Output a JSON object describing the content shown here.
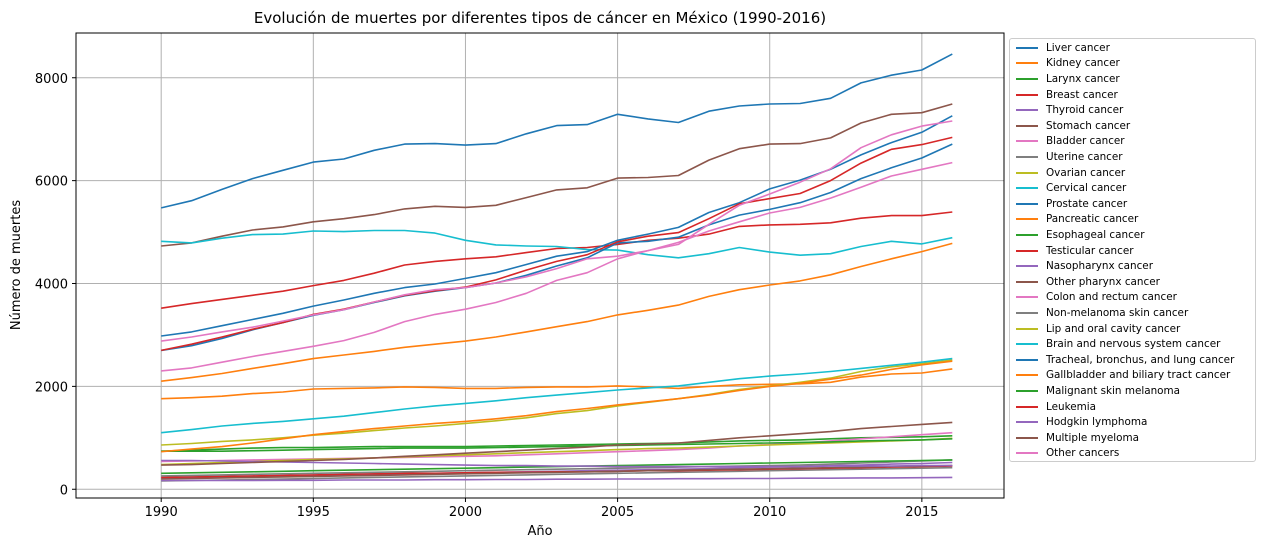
{
  "chart_data": {
    "type": "line",
    "title": "Evolución de muertes por diferentes tipos de cáncer en México (1990-2016)",
    "xlabel": "Año",
    "ylabel": "Número de muertes",
    "xlim": [
      1987.2,
      2017.7
    ],
    "ylim": [
      -170,
      8870
    ],
    "x_ticks": [
      1990,
      1995,
      2000,
      2005,
      2010,
      2015
    ],
    "y_ticks": [
      0,
      2000,
      4000,
      6000,
      8000
    ],
    "grid": true,
    "legend_position": "outside-right",
    "x": [
      1990,
      1991,
      1992,
      1993,
      1994,
      1995,
      1996,
      1997,
      1998,
      1999,
      2000,
      2001,
      2002,
      2003,
      2004,
      2005,
      2006,
      2007,
      2008,
      2009,
      2010,
      2011,
      2012,
      2013,
      2014,
      2015,
      2016
    ],
    "series": [
      {
        "name": "Liver cancer",
        "color": "#1f77b4",
        "values": [
          5470,
          5610,
          5830,
          6040,
          6200,
          6360,
          6420,
          6590,
          6710,
          6720,
          6690,
          6720,
          6910,
          7070,
          7090,
          7290,
          7200,
          7130,
          7350,
          7450,
          7490,
          7500,
          7600,
          7900,
          8050,
          8150,
          8460
        ]
      },
      {
        "name": "Kidney cancer",
        "color": "#ff7f0e",
        "values": [
          1760,
          1780,
          1810,
          1860,
          1890,
          1950,
          1960,
          1970,
          1990,
          1980,
          1960,
          1960,
          1980,
          1990,
          1990,
          2010,
          1990,
          1960,
          2000,
          2030,
          2040,
          2050,
          2080,
          2180,
          2240,
          2260,
          2340
        ]
      },
      {
        "name": "Larynx cancer",
        "color": "#2ca02c",
        "values": [
          740,
          760,
          780,
          800,
          810,
          810,
          820,
          830,
          830,
          830,
          830,
          840,
          850,
          860,
          870,
          880,
          890,
          900,
          920,
          940,
          950,
          960,
          980,
          1000,
          1010,
          1020,
          1040
        ]
      },
      {
        "name": "Breast cancer",
        "color": "#d62728",
        "values": [
          3520,
          3610,
          3690,
          3770,
          3850,
          3960,
          4060,
          4200,
          4360,
          4430,
          4480,
          4520,
          4600,
          4680,
          4700,
          4760,
          4840,
          4880,
          4960,
          5110,
          5140,
          5150,
          5180,
          5270,
          5320,
          5320,
          5390
        ]
      },
      {
        "name": "Thyroid cancer",
        "color": "#9467bd",
        "values": [
          220,
          230,
          240,
          250,
          260,
          270,
          280,
          290,
          300,
          310,
          320,
          330,
          340,
          350,
          360,
          370,
          380,
          390,
          400,
          420,
          430,
          440,
          460,
          470,
          490,
          500,
          520
        ]
      },
      {
        "name": "Stomach cancer",
        "color": "#8c564b",
        "values": [
          4730,
          4790,
          4920,
          5040,
          5100,
          5200,
          5260,
          5340,
          5450,
          5500,
          5480,
          5520,
          5670,
          5820,
          5860,
          6050,
          6060,
          6100,
          6400,
          6620,
          6710,
          6720,
          6830,
          7120,
          7290,
          7320,
          7490
        ]
      },
      {
        "name": "Bladder cancer",
        "color": "#e377c2",
        "values": [
          540,
          550,
          560,
          570,
          580,
          590,
          600,
          610,
          620,
          630,
          640,
          650,
          670,
          690,
          710,
          730,
          750,
          770,
          800,
          840,
          870,
          900,
          940,
          980,
          1020,
          1060,
          1100
        ]
      },
      {
        "name": "Uterine cancer",
        "color": "#7f7f7f",
        "values": [
          160,
          170,
          180,
          190,
          200,
          210,
          220,
          230,
          240,
          250,
          260,
          270,
          280,
          290,
          300,
          310,
          320,
          330,
          340,
          350,
          360,
          370,
          380,
          390,
          400,
          410,
          420
        ]
      },
      {
        "name": "Ovarian cancer",
        "color": "#bcbd22",
        "values": [
          480,
          500,
          520,
          540,
          560,
          580,
          590,
          610,
          630,
          650,
          670,
          690,
          710,
          730,
          750,
          770,
          790,
          800,
          820,
          840,
          860,
          880,
          900,
          920,
          940,
          960,
          990
        ]
      },
      {
        "name": "Cervical cancer",
        "color": "#17becf",
        "values": [
          4820,
          4790,
          4880,
          4950,
          4960,
          5020,
          5010,
          5030,
          5030,
          4980,
          4840,
          4750,
          4730,
          4720,
          4660,
          4650,
          4560,
          4500,
          4580,
          4700,
          4610,
          4550,
          4580,
          4720,
          4820,
          4770,
          4890
        ]
      },
      {
        "name": "Prostate cancer",
        "color": "#1f77b4",
        "values": [
          2700,
          2790,
          2930,
          3100,
          3240,
          3380,
          3490,
          3630,
          3760,
          3850,
          3920,
          4010,
          4160,
          4340,
          4500,
          4790,
          4820,
          4900,
          5140,
          5330,
          5440,
          5570,
          5770,
          6040,
          6250,
          6440,
          6710
        ]
      },
      {
        "name": "Pancreatic cancer",
        "color": "#ff7f0e",
        "values": [
          2100,
          2170,
          2250,
          2350,
          2440,
          2540,
          2610,
          2680,
          2760,
          2820,
          2880,
          2960,
          3060,
          3160,
          3260,
          3390,
          3480,
          3580,
          3750,
          3880,
          3970,
          4050,
          4170,
          4330,
          4480,
          4620,
          4780
        ]
      },
      {
        "name": "Esophageal cancer",
        "color": "#2ca02c",
        "values": [
          740,
          740,
          740,
          750,
          760,
          770,
          780,
          790,
          800,
          800,
          800,
          810,
          820,
          830,
          840,
          850,
          860,
          870,
          880,
          890,
          900,
          910,
          920,
          940,
          950,
          960,
          980
        ]
      },
      {
        "name": "Testicular cancer",
        "color": "#d62728",
        "values": [
          230,
          240,
          250,
          260,
          270,
          280,
          290,
          300,
          310,
          310,
          320,
          330,
          330,
          340,
          340,
          350,
          360,
          360,
          370,
          380,
          390,
          400,
          410,
          420,
          430,
          440,
          450
        ]
      },
      {
        "name": "Nasopharynx cancer",
        "color": "#9467bd",
        "values": [
          170,
          170,
          170,
          170,
          175,
          175,
          180,
          180,
          180,
          185,
          185,
          190,
          190,
          195,
          195,
          200,
          200,
          205,
          205,
          210,
          210,
          215,
          215,
          220,
          220,
          225,
          230
        ]
      },
      {
        "name": "Other pharynx cancer",
        "color": "#8c564b",
        "values": [
          200,
          210,
          220,
          230,
          240,
          250,
          260,
          270,
          280,
          290,
          300,
          310,
          320,
          330,
          340,
          350,
          360,
          370,
          380,
          390,
          400,
          410,
          420,
          430,
          440,
          450,
          460
        ]
      },
      {
        "name": "Colon and rectum cancer",
        "color": "#e377c2",
        "values": [
          2300,
          2360,
          2470,
          2580,
          2680,
          2780,
          2890,
          3050,
          3260,
          3400,
          3500,
          3630,
          3810,
          4060,
          4210,
          4480,
          4640,
          4800,
          5020,
          5200,
          5370,
          5480,
          5660,
          5870,
          6090,
          6220,
          6350
        ]
      },
      {
        "name": "Non-melanoma skin cancer",
        "color": "#7f7f7f",
        "values": [
          260,
          270,
          280,
          290,
          300,
          310,
          320,
          330,
          340,
          350,
          360,
          370,
          380,
          390,
          400,
          410,
          420,
          430,
          440,
          450,
          460,
          470,
          490,
          510,
          530,
          550,
          570
        ]
      },
      {
        "name": "Lip and oral cavity cancer",
        "color": "#bcbd22",
        "values": [
          860,
          890,
          930,
          960,
          1000,
          1050,
          1090,
          1140,
          1190,
          1230,
          1280,
          1330,
          1390,
          1470,
          1530,
          1620,
          1690,
          1760,
          1840,
          1940,
          2010,
          2080,
          2160,
          2290,
          2380,
          2440,
          2510
        ]
      },
      {
        "name": "Brain and nervous system cancer",
        "color": "#17becf",
        "values": [
          1100,
          1160,
          1230,
          1280,
          1320,
          1370,
          1420,
          1490,
          1560,
          1620,
          1670,
          1720,
          1780,
          1830,
          1880,
          1930,
          1970,
          2010,
          2080,
          2150,
          2200,
          2240,
          2290,
          2350,
          2410,
          2470,
          2540
        ]
      },
      {
        "name": "Tracheal, bronchus, and lung cancer",
        "color": "#1f77b4",
        "values": [
          2980,
          3060,
          3180,
          3300,
          3420,
          3560,
          3680,
          3810,
          3920,
          3990,
          4100,
          4210,
          4370,
          4530,
          4620,
          4840,
          4960,
          5090,
          5380,
          5570,
          5840,
          6010,
          6220,
          6500,
          6740,
          6940,
          7260
        ]
      },
      {
        "name": "Gallbladder and biliary tract cancer",
        "color": "#ff7f0e",
        "values": [
          730,
          780,
          830,
          900,
          980,
          1060,
          1120,
          1180,
          1230,
          1280,
          1320,
          1370,
          1430,
          1510,
          1570,
          1640,
          1700,
          1760,
          1830,
          1920,
          2000,
          2060,
          2140,
          2220,
          2330,
          2420,
          2490
        ]
      },
      {
        "name": "Malignant skin melanoma",
        "color": "#2ca02c",
        "values": [
          310,
          320,
          330,
          340,
          350,
          360,
          370,
          380,
          390,
          400,
          410,
          420,
          430,
          440,
          450,
          460,
          470,
          480,
          490,
          500,
          510,
          520,
          530,
          540,
          550,
          560,
          570
        ]
      },
      {
        "name": "Leukemia",
        "color": "#d62728",
        "values": [
          2700,
          2820,
          2960,
          3110,
          3240,
          3400,
          3500,
          3640,
          3770,
          3860,
          3930,
          4070,
          4260,
          4430,
          4560,
          4810,
          4920,
          4990,
          5260,
          5550,
          5650,
          5750,
          6000,
          6340,
          6610,
          6700,
          6840
        ]
      },
      {
        "name": "Hodgkin lymphoma",
        "color": "#9467bd",
        "values": [
          560,
          560,
          550,
          540,
          530,
          520,
          510,
          500,
          490,
          480,
          470,
          460,
          460,
          450,
          450,
          440,
          440,
          440,
          440,
          440,
          440,
          440,
          450,
          450,
          450,
          460,
          460
        ]
      },
      {
        "name": "Multiple myeloma",
        "color": "#8c564b",
        "values": [
          470,
          480,
          500,
          520,
          540,
          560,
          580,
          610,
          640,
          670,
          700,
          730,
          760,
          790,
          820,
          860,
          880,
          900,
          950,
          1000,
          1040,
          1080,
          1120,
          1180,
          1220,
          1260,
          1300
        ]
      },
      {
        "name": "Other cancers",
        "color": "#e377c2",
        "values": [
          2880,
          2960,
          3060,
          3150,
          3270,
          3390,
          3490,
          3640,
          3780,
          3880,
          3920,
          4010,
          4130,
          4290,
          4480,
          4530,
          4640,
          4760,
          5150,
          5520,
          5740,
          5970,
          6230,
          6640,
          6890,
          7060,
          7160
        ]
      }
    ]
  }
}
